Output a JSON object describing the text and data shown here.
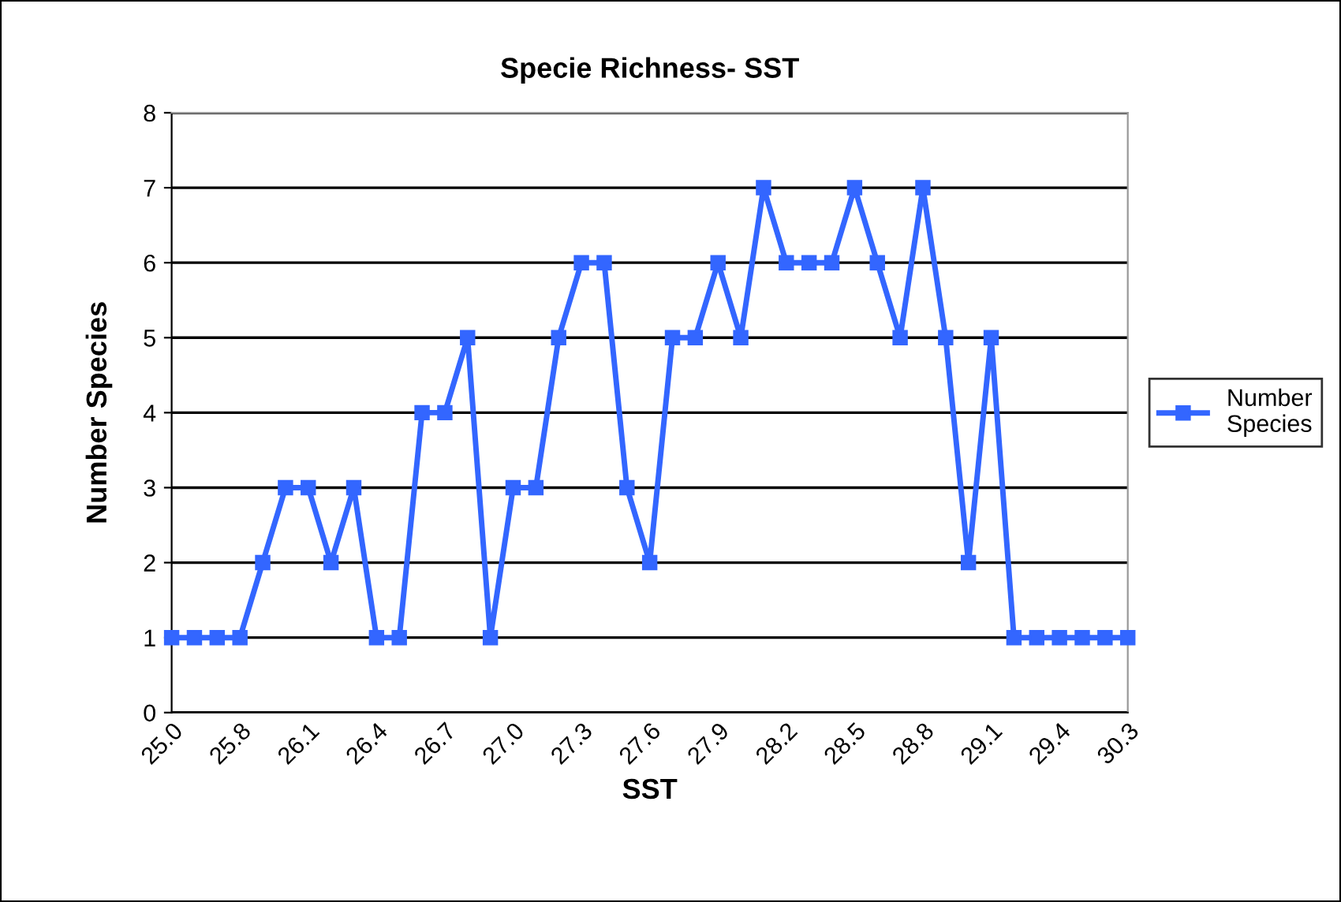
{
  "chart_data": {
    "type": "line",
    "title": "Specie Richness- SST",
    "xlabel": "SST",
    "ylabel": "Number Species",
    "categories": [
      "25.0",
      null,
      null,
      "25.8",
      null,
      null,
      "26.1",
      null,
      null,
      "26.4",
      null,
      null,
      "26.7",
      null,
      null,
      "27.0",
      null,
      null,
      "27.3",
      null,
      null,
      "27.6",
      null,
      null,
      "27.9",
      null,
      null,
      "28.2",
      null,
      null,
      "28.5",
      null,
      null,
      "28.8",
      null,
      null,
      "29.1",
      null,
      null,
      "29.4",
      null,
      null,
      "30.3"
    ],
    "series": [
      {
        "name": "Number Species",
        "color": "#3366ff",
        "values": [
          1,
          1,
          1,
          1,
          2,
          3,
          3,
          2,
          3,
          1,
          1,
          4,
          4,
          5,
          1,
          3,
          3,
          5,
          6,
          6,
          3,
          2,
          5,
          5,
          6,
          5,
          7,
          6,
          6,
          6,
          7,
          6,
          5,
          7,
          5,
          2,
          5,
          1,
          1,
          1,
          1,
          1,
          1
        ]
      }
    ],
    "ylim": [
      0,
      8
    ],
    "yticks": [
      0,
      1,
      2,
      3,
      4,
      5,
      6,
      7,
      8
    ],
    "grid": "y",
    "legend": "right",
    "marker": "square",
    "line_style": "solid"
  }
}
